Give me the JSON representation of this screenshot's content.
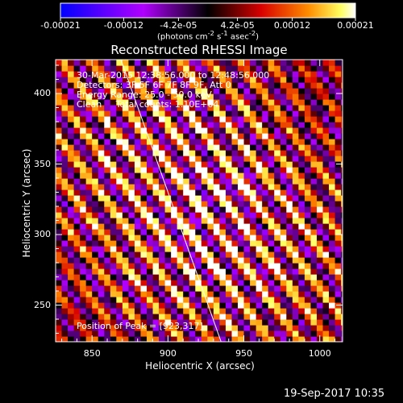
{
  "chart_data": {
    "type": "heatmap",
    "title": "Reconstructed RHESSI Image",
    "xlabel": "Heliocentric X (arcsec)",
    "ylabel": "Heliocentric Y (arcsec)",
    "xlim": [
      826,
      1015
    ],
    "ylim": [
      224,
      424
    ],
    "x_ticks": [
      850,
      900,
      950,
      1000
    ],
    "y_ticks": [
      250,
      300,
      350,
      400
    ],
    "colorbar": {
      "min": -0.00021,
      "max": 0.00021,
      "tick_values": [
        -0.00021,
        -0.00012,
        -4.2e-05,
        4.2e-05,
        0.00012,
        0.00021
      ],
      "tick_labels": [
        "-0.00021",
        "-0.00012",
        "-4.2e-05",
        "4.2e-05",
        "0.00012",
        "0.00021"
      ],
      "units_html": "(photons cm<sup>-2</sup> s<sup>-1</sup> asec<sup>-2</sup>)"
    },
    "annotations": {
      "time_range": "30-Mar-2015 12:38:56.000 to 12:48:56.000",
      "detectors": "Detectors: 3F 5F 6F 7F 8F 9F, Att 0",
      "energy": "Energy Range: 25.0 - 50.0 keV",
      "clean": "Clean     Total counts: 1.10E+04",
      "peak": "Position of Peak = [923,317]"
    },
    "peak_position": [
      923,
      317
    ],
    "limb_line": [
      [
        869,
        424
      ],
      [
        935,
        224
      ]
    ],
    "grid": false,
    "colormap": "rhessi_blue_white_red"
  },
  "footer": {
    "timestamp": "19-Sep-2017 10:35"
  }
}
